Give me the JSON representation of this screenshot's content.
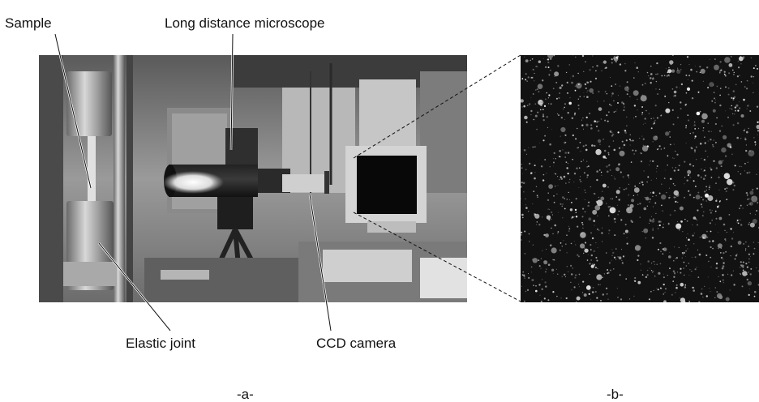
{
  "labels": {
    "sample": "Sample",
    "long_distance_microscope": "Long distance microscope",
    "elastic_joint": "Elastic joint",
    "ccd_camera": "CCD camera"
  },
  "panels": {
    "a": "-a-",
    "b": "-b-"
  },
  "colors": {
    "background": "#ffffff",
    "text": "#111111",
    "speckle_bg": "#121212"
  }
}
